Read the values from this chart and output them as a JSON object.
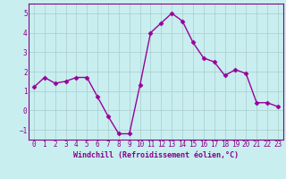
{
  "x": [
    0,
    1,
    2,
    3,
    4,
    5,
    6,
    7,
    8,
    9,
    10,
    11,
    12,
    13,
    14,
    15,
    16,
    17,
    18,
    19,
    20,
    21,
    22,
    23
  ],
  "y": [
    1.2,
    1.7,
    1.4,
    1.5,
    1.7,
    1.7,
    0.7,
    -0.3,
    -1.2,
    -1.2,
    1.3,
    4.0,
    4.5,
    5.0,
    4.6,
    3.5,
    2.7,
    2.5,
    1.8,
    2.1,
    1.9,
    0.4,
    0.4,
    0.2
  ],
  "line_color": "#990099",
  "marker": "D",
  "marker_size": 2.5,
  "bg_color": "#c8eef0",
  "grid_color": "#aacccc",
  "xlabel": "Windchill (Refroidissement éolien,°C)",
  "xlabel_color": "#880088",
  "xlim": [
    -0.5,
    23.5
  ],
  "ylim": [
    -1.5,
    5.5
  ],
  "yticks": [
    -1,
    0,
    1,
    2,
    3,
    4,
    5
  ],
  "xticks": [
    0,
    1,
    2,
    3,
    4,
    5,
    6,
    7,
    8,
    9,
    10,
    11,
    12,
    13,
    14,
    15,
    16,
    17,
    18,
    19,
    20,
    21,
    22,
    23
  ],
  "tick_color": "#880088",
  "font_family": "monospace",
  "tick_fontsize": 5.5,
  "xlabel_fontsize": 6.0,
  "linewidth": 1.0
}
